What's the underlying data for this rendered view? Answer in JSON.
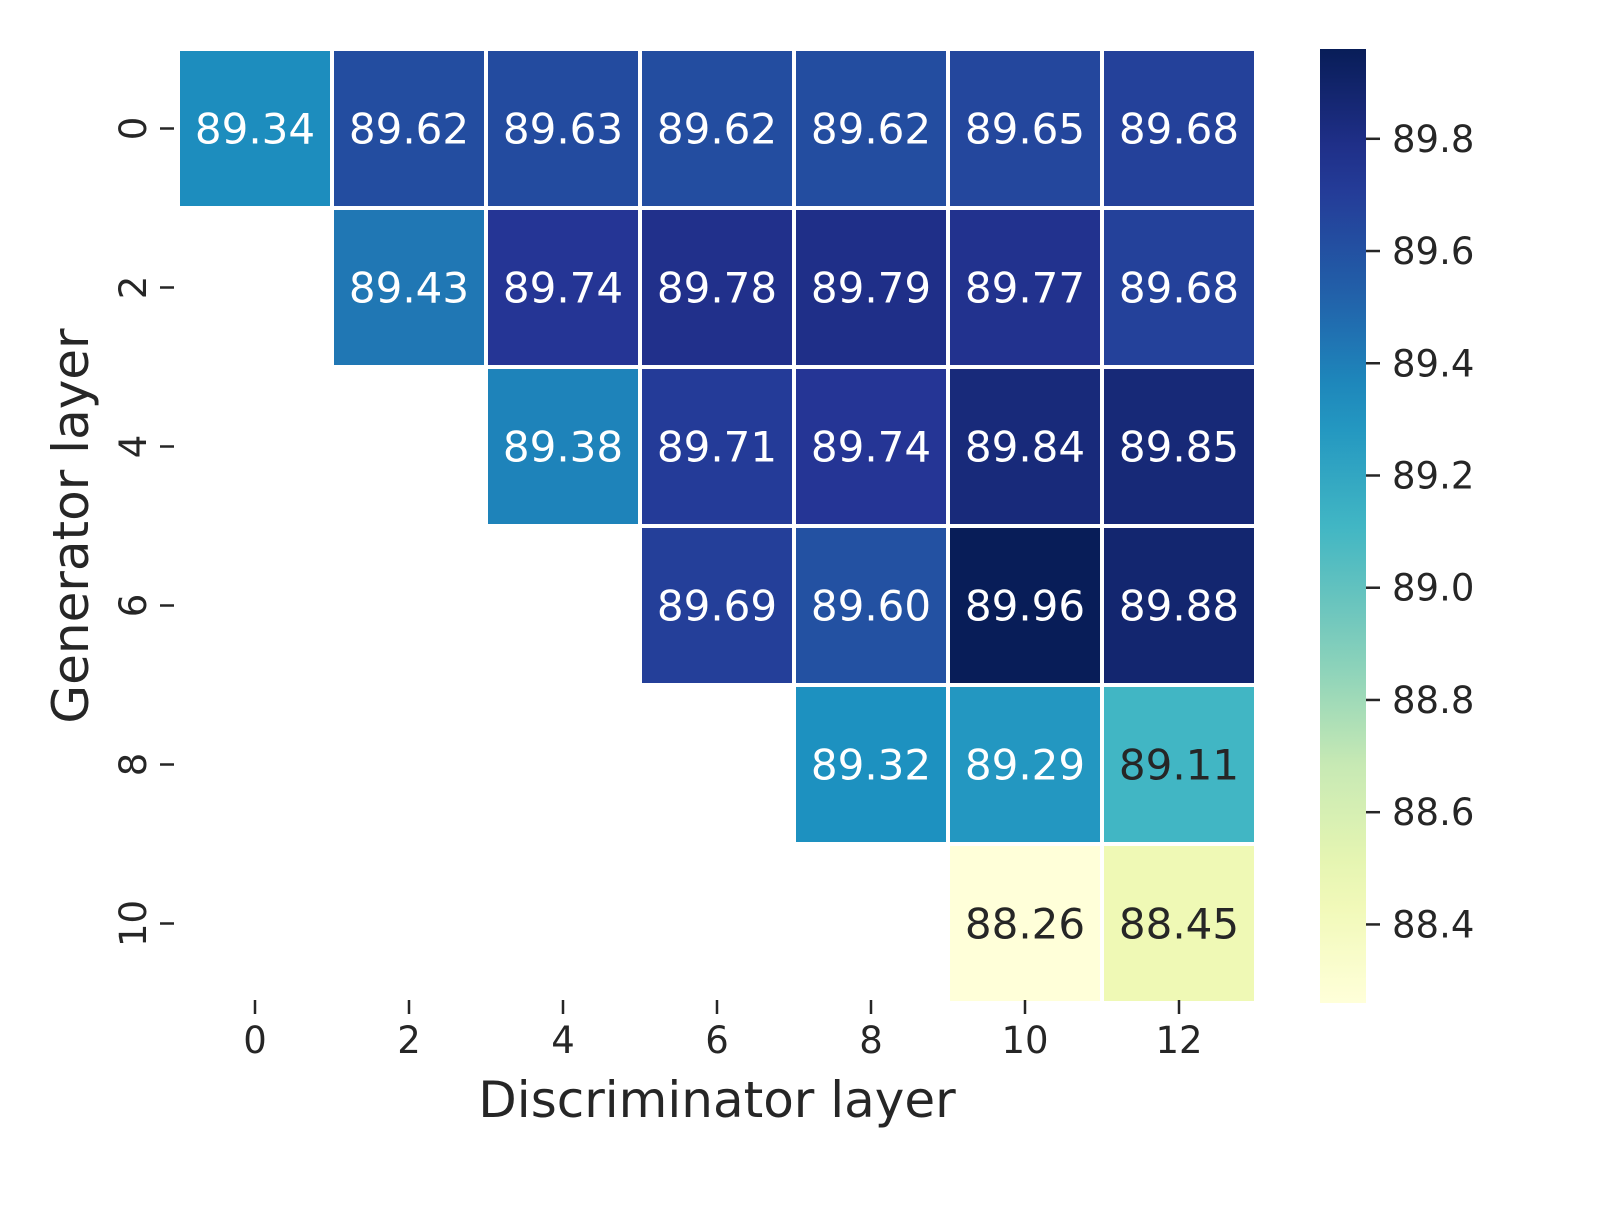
{
  "chart_data": {
    "type": "heatmap",
    "xlabel": "Discriminator layer",
    "ylabel": "Generator layer",
    "x_ticks": [
      "0",
      "2",
      "4",
      "6",
      "8",
      "10",
      "12"
    ],
    "y_ticks": [
      "0",
      "2",
      "4",
      "6",
      "8",
      "10"
    ],
    "cells": [
      [
        89.34,
        89.62,
        89.63,
        89.62,
        89.62,
        89.65,
        89.68
      ],
      [
        null,
        89.43,
        89.74,
        89.78,
        89.79,
        89.77,
        89.68
      ],
      [
        null,
        null,
        89.38,
        89.71,
        89.74,
        89.84,
        89.85
      ],
      [
        null,
        null,
        null,
        89.69,
        89.6,
        89.96,
        89.88
      ],
      [
        null,
        null,
        null,
        null,
        89.32,
        89.29,
        89.11
      ],
      [
        null,
        null,
        null,
        null,
        null,
        88.26,
        88.45
      ]
    ],
    "labels": [
      [
        "89.34",
        "89.62",
        "89.63",
        "89.62",
        "89.62",
        "89.65",
        "89.68"
      ],
      [
        null,
        "89.43",
        "89.74",
        "89.78",
        "89.79",
        "89.77",
        "89.68"
      ],
      [
        null,
        null,
        "89.38",
        "89.71",
        "89.74",
        "89.84",
        "89.85"
      ],
      [
        null,
        null,
        null,
        "89.69",
        "89.60",
        "89.96",
        "89.88"
      ],
      [
        null,
        null,
        null,
        null,
        "89.32",
        "89.29",
        "89.11"
      ],
      [
        null,
        null,
        null,
        null,
        null,
        "88.26",
        "88.45"
      ]
    ],
    "colorscale": "YlGnBu",
    "vmin": 88.26,
    "vmax": 89.96,
    "colorbar_ticks": [
      "88.4",
      "88.6",
      "88.8",
      "89.0",
      "89.2",
      "89.4",
      "89.6",
      "89.8"
    ],
    "colorbar_tick_values": [
      88.4,
      88.6,
      88.8,
      89.0,
      89.2,
      89.4,
      89.6,
      89.8
    ],
    "grid": false
  }
}
